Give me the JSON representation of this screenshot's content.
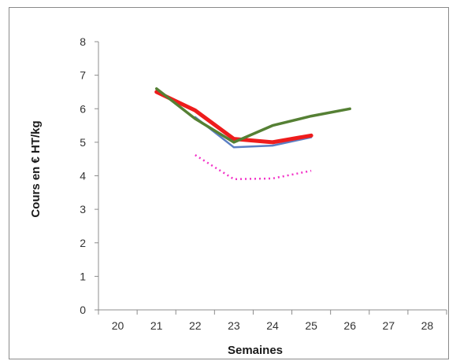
{
  "chart_data": {
    "type": "line",
    "title": "",
    "xlabel": "Semaines",
    "ylabel": "Cours en € HT/kg",
    "x_ticks": [
      20,
      21,
      22,
      23,
      24,
      25,
      26,
      27,
      28
    ],
    "y_ticks": [
      0,
      1,
      2,
      3,
      4,
      5,
      6,
      7,
      8
    ],
    "xlim": [
      20,
      28
    ],
    "ylim": [
      0,
      8
    ],
    "grid": false,
    "legend": "none",
    "series": [
      {
        "color": "#5b7fc4",
        "width": 2.5,
        "dash": "",
        "x": [
          22,
          23,
          24,
          25
        ],
        "y": [
          5.75,
          4.85,
          4.9,
          5.15
        ]
      },
      {
        "color": "#ee1c1c",
        "width": 5,
        "dash": "",
        "x": [
          21,
          22,
          23,
          24,
          25
        ],
        "y": [
          6.5,
          5.95,
          5.1,
          5.0,
          5.2
        ]
      },
      {
        "color": "#558034",
        "width": 3.5,
        "dash": "",
        "x": [
          21,
          22,
          23,
          24,
          25,
          26
        ],
        "y": [
          6.6,
          5.7,
          5.0,
          5.5,
          5.78,
          6.0
        ]
      },
      {
        "color": "#f233c8",
        "width": 2.5,
        "dash": "2,4",
        "x": [
          22,
          23,
          24,
          25
        ],
        "y": [
          4.62,
          3.9,
          3.92,
          4.15
        ]
      }
    ]
  }
}
